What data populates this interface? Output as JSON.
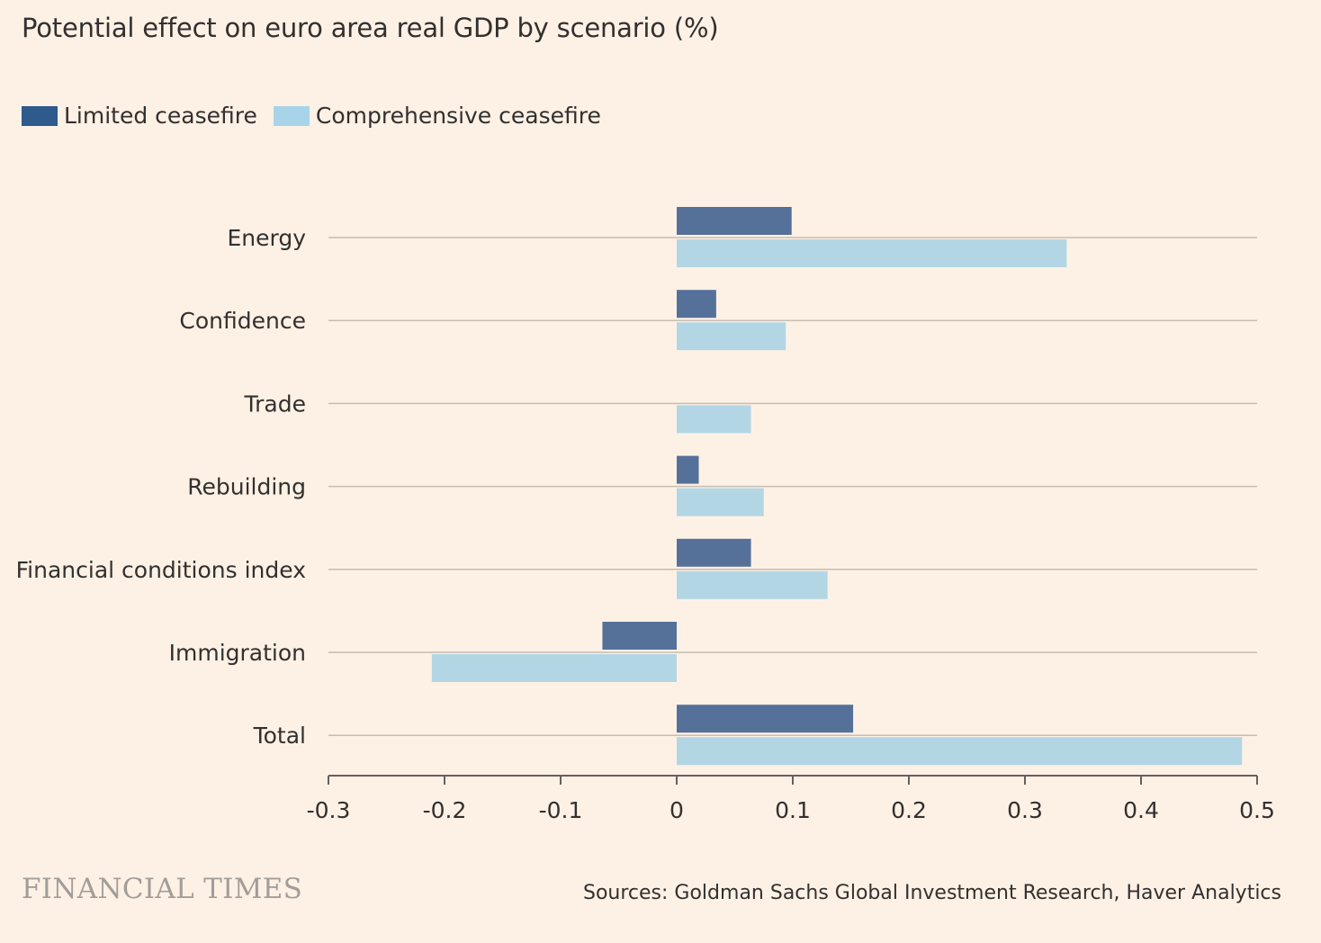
{
  "title": "Potential effect on euro area real GDP by scenario (%)",
  "legend": [
    {
      "label": "Limited ceasefire",
      "color": "#2e5a8c"
    },
    {
      "label": "Comprehensive ceasefire",
      "color": "#a7d4e8"
    }
  ],
  "chart_data": {
    "type": "bar",
    "orientation": "horizontal",
    "categories": [
      "Energy",
      "Confidence",
      "Trade",
      "Rebuilding",
      "Financial conditions index",
      "Immigration",
      "Total"
    ],
    "series": [
      {
        "name": "Limited ceasefire",
        "color": "#557199",
        "values": [
          0.099,
          0.034,
          0.0,
          0.019,
          0.064,
          -0.064,
          0.152
        ]
      },
      {
        "name": "Comprehensive ceasefire",
        "color": "#b3d6e5",
        "values": [
          0.336,
          0.094,
          0.064,
          0.075,
          0.13,
          -0.211,
          0.487
        ]
      }
    ],
    "xlim": [
      -0.3,
      0.5
    ],
    "xticks": [
      "-0.3",
      "-0.2",
      "-0.1",
      "0",
      "0.1",
      "0.2",
      "0.3",
      "0.4",
      "0.5"
    ],
    "xlabel": "",
    "ylabel": "",
    "grid": true
  },
  "brand": "FINANCIAL TIMES",
  "source": "Sources: Goldman Sachs Global Investment Research, Haver Analytics"
}
